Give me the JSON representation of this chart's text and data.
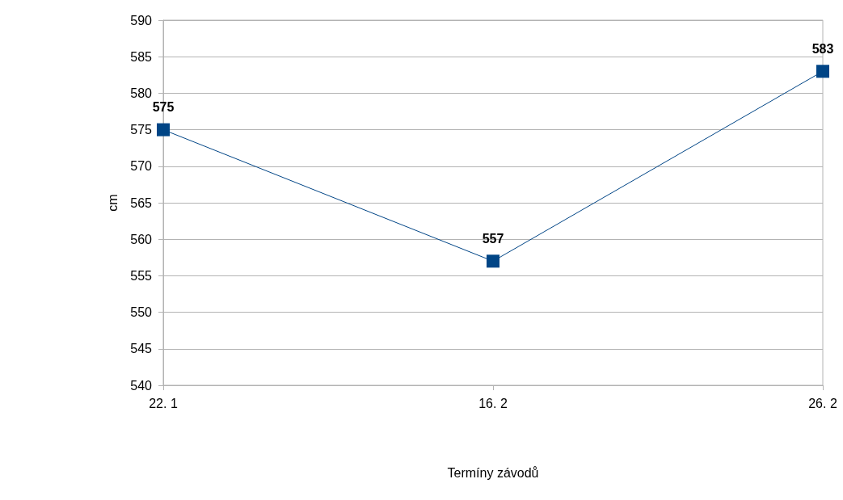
{
  "chart_data": {
    "type": "line",
    "xlabel": "Termíny závodů",
    "ylabel": "cm",
    "categories": [
      "22. 1",
      "16. 2",
      "26. 2"
    ],
    "series": [
      {
        "color": "#004586",
        "values": [
          575,
          557,
          583
        ]
      }
    ],
    "ylim": [
      540,
      590
    ],
    "yticks": [
      540,
      545,
      550,
      555,
      560,
      565,
      570,
      575,
      580,
      585,
      590
    ],
    "grid": "y",
    "marker": "square",
    "line_style": "solid",
    "data_labels": true
  }
}
